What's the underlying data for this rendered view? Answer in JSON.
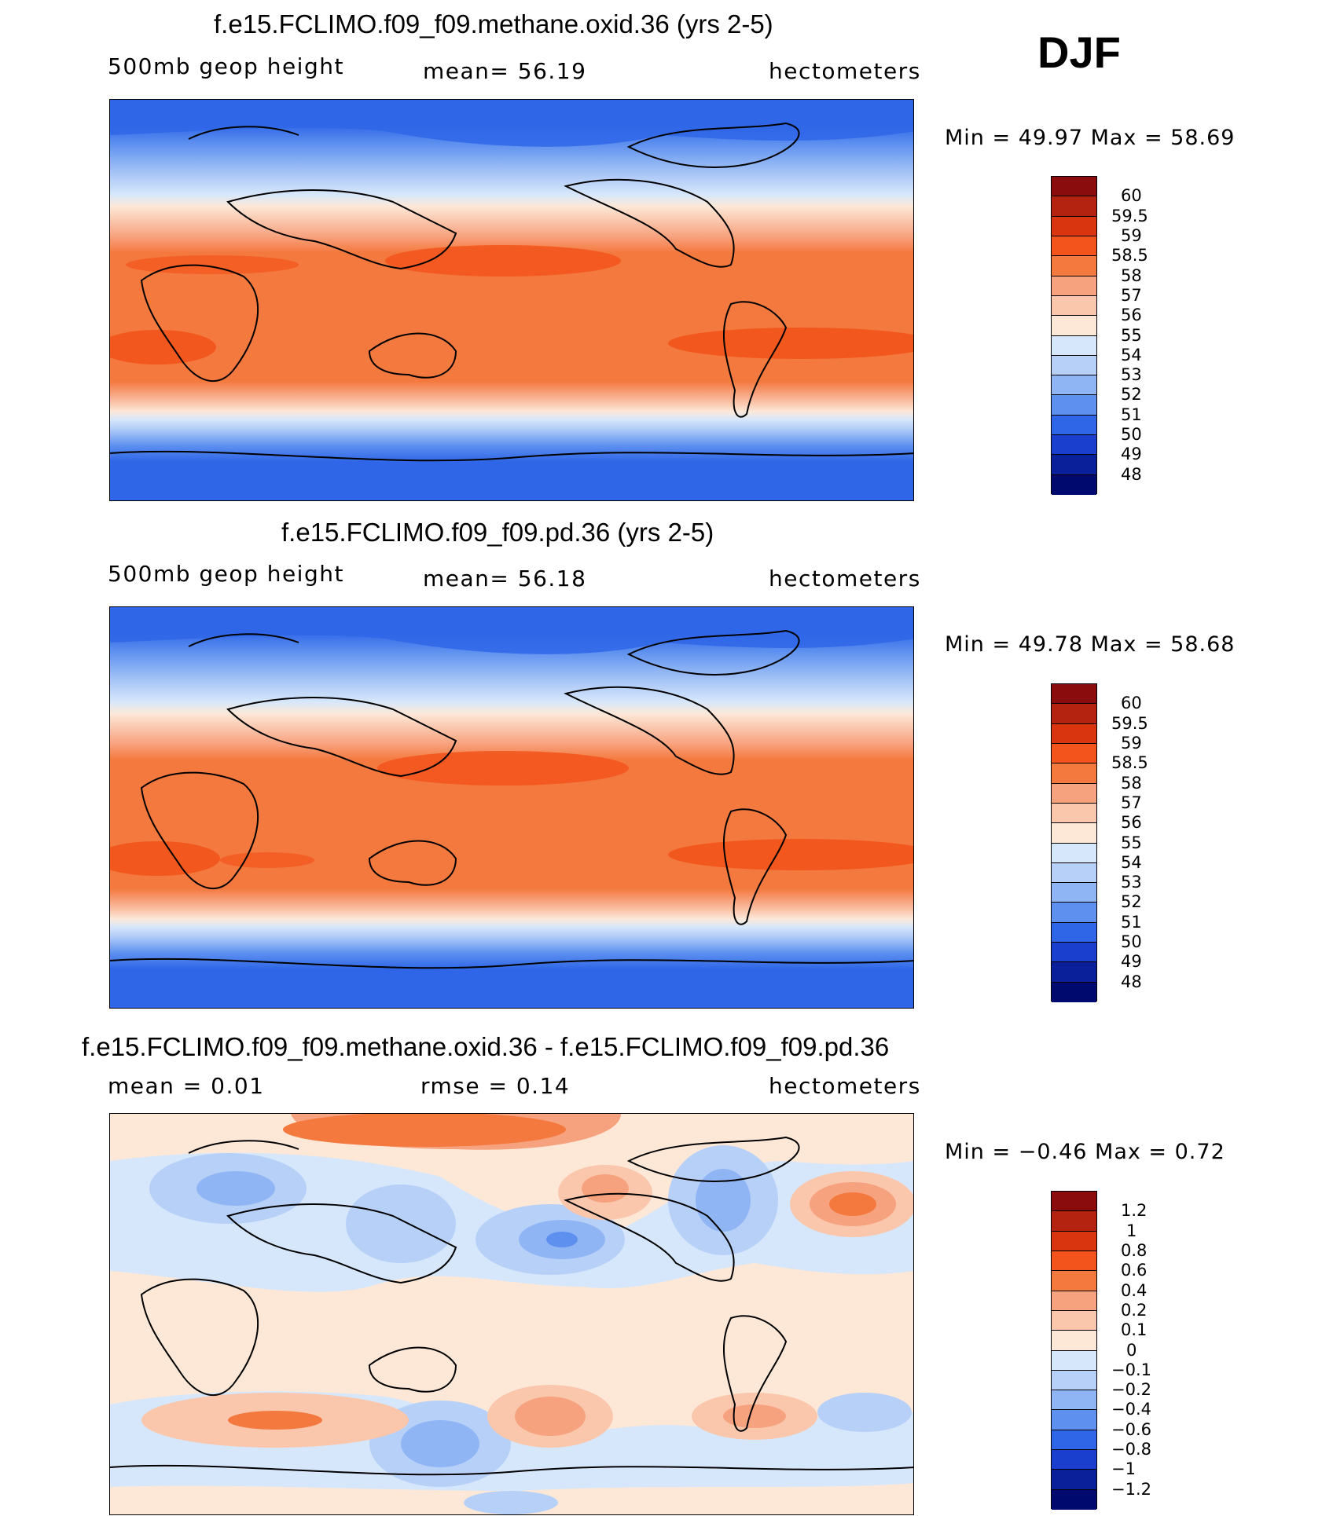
{
  "season": "DJF",
  "panels": [
    {
      "title": "f.e15.FCLIMO.f09_f09.methane.oxid.36 (yrs 2-5)",
      "left_label": "500mb  geop  height",
      "center_label": "mean=   56.19",
      "right_label": "hectometers",
      "minmax": "Min  =    49.97  Max  =    58.69",
      "colorbar": {
        "labels": [
          "60",
          "59.5",
          "59",
          "58.5",
          "58",
          "57",
          "56",
          "55",
          "54",
          "53",
          "52",
          "51",
          "50",
          "49",
          "48"
        ],
        "colors": [
          "#8a0c0c",
          "#b4230f",
          "#d9350f",
          "#f2541b",
          "#f4793e",
          "#f7a27e",
          "#fac7ad",
          "#fde8d8",
          "#d6e7fb",
          "#b7d0f8",
          "#90b5f4",
          "#5d90ef",
          "#2f66e8",
          "#1a3fcf",
          "#0a1f9a",
          "#000a6e"
        ]
      }
    },
    {
      "title": "f.e15.FCLIMO.f09_f09.pd.36 (yrs 2-5)",
      "left_label": "500mb  geop  height",
      "center_label": "mean=   56.18",
      "right_label": "hectometers",
      "minmax": "Min  =    49.78  Max  =    58.68",
      "colorbar": {
        "labels": [
          "60",
          "59.5",
          "59",
          "58.5",
          "58",
          "57",
          "56",
          "55",
          "54",
          "53",
          "52",
          "51",
          "50",
          "49",
          "48"
        ],
        "colors": [
          "#8a0c0c",
          "#b4230f",
          "#d9350f",
          "#f2541b",
          "#f4793e",
          "#f7a27e",
          "#fac7ad",
          "#fde8d8",
          "#d6e7fb",
          "#b7d0f8",
          "#90b5f4",
          "#5d90ef",
          "#2f66e8",
          "#1a3fcf",
          "#0a1f9a",
          "#000a6e"
        ]
      }
    },
    {
      "title": "f.e15.FCLIMO.f09_f09.methane.oxid.36 - f.e15.FCLIMO.f09_f09.pd.36",
      "left_label": "mean  =     0.01",
      "center_label": "rmse  =     0.14",
      "right_label": "hectometers",
      "minmax": "Min  =    −0.46  Max  =     0.72",
      "colorbar": {
        "labels": [
          "1.2",
          "1",
          "0.8",
          "0.6",
          "0.4",
          "0.2",
          "0.1",
          "0",
          "−0.1",
          "−0.2",
          "−0.4",
          "−0.6",
          "−0.8",
          "−1",
          "−1.2"
        ],
        "colors": [
          "#8a0c0c",
          "#b4230f",
          "#d9350f",
          "#f2541b",
          "#f4793e",
          "#f7a27e",
          "#fac7ad",
          "#fde8d8",
          "#d6e7fb",
          "#b7d0f8",
          "#90b5f4",
          "#5d90ef",
          "#2f66e8",
          "#1a3fcf",
          "#0a1f9a",
          "#000a6e"
        ]
      }
    }
  ]
}
